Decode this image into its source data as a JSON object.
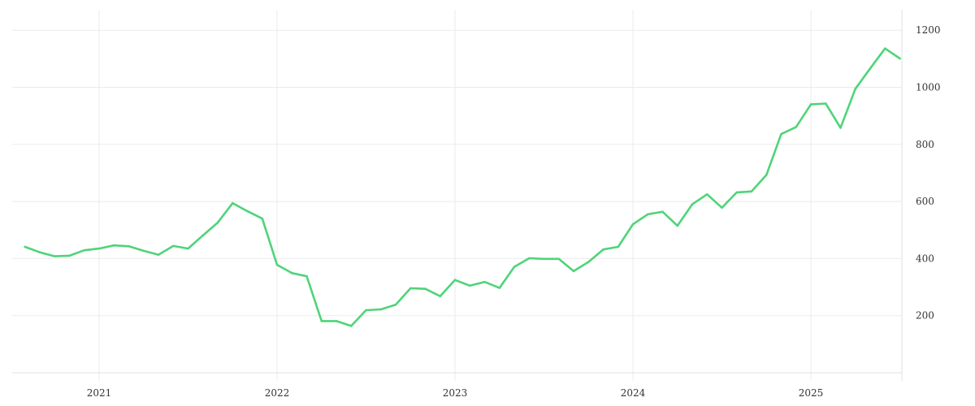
{
  "chart_data": {
    "type": "line",
    "title": "",
    "xlabel": "",
    "ylabel": "",
    "x_ticks": [
      "2021",
      "2022",
      "2023",
      "2024",
      "2025"
    ],
    "y_ticks": [
      "200",
      "400",
      "600",
      "800",
      "1000",
      "1200"
    ],
    "ylim": [
      0,
      1200
    ],
    "grid": true,
    "y_axis_position": "right",
    "series": [
      {
        "color": "#4fd47a",
        "x": [
          "2020-08",
          "2020-09",
          "2020-10",
          "2020-11",
          "2020-12",
          "2021-01",
          "2021-02",
          "2021-03",
          "2021-04",
          "2021-05",
          "2021-06",
          "2021-07",
          "2021-08",
          "2021-09",
          "2021-10",
          "2021-11",
          "2021-12",
          "2022-01",
          "2022-02",
          "2022-03",
          "2022-04",
          "2022-05",
          "2022-06",
          "2022-07",
          "2022-08",
          "2022-09",
          "2022-10",
          "2022-11",
          "2022-12",
          "2023-01",
          "2023-02",
          "2023-03",
          "2023-04",
          "2023-05",
          "2023-06",
          "2023-07",
          "2023-08",
          "2023-09",
          "2023-10",
          "2023-11",
          "2023-12",
          "2024-01",
          "2024-02",
          "2024-03",
          "2024-04",
          "2024-05",
          "2024-06",
          "2024-07",
          "2024-08",
          "2024-09",
          "2024-10",
          "2024-11",
          "2024-12",
          "2025-01",
          "2025-02",
          "2025-03",
          "2025-04",
          "2025-05",
          "2025-06",
          "2025-07"
        ],
        "values": [
          441,
          422,
          408,
          410,
          429,
          435,
          446,
          443,
          427,
          413,
          444,
          435,
          481,
          526,
          594,
          566,
          540,
          378,
          349,
          338,
          181,
          181,
          164,
          219,
          222,
          238,
          296,
          294,
          268,
          325,
          305,
          318,
          297,
          371,
          401,
          399,
          399,
          356,
          388,
          432,
          441,
          520,
          555,
          564,
          515,
          590,
          625,
          578,
          632,
          635,
          693,
          836,
          861,
          940,
          943,
          858,
          995,
          1066,
          1136,
          1101
        ]
      }
    ]
  }
}
